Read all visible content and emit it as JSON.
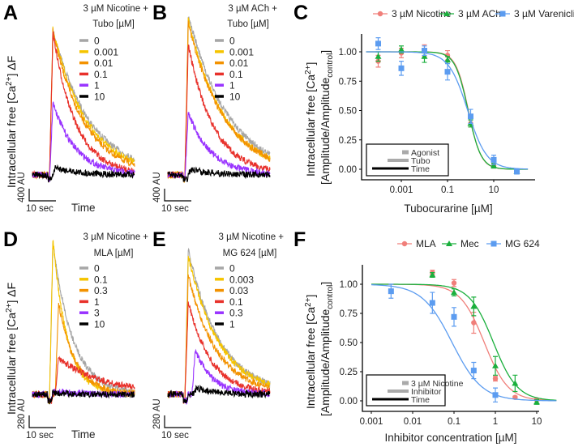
{
  "chart_data": [
    {
      "panel": "A",
      "type": "line",
      "header": [
        "3 µM Nicotine +",
        "Tubo [µM]"
      ],
      "ylabel": {
        "pre": "Intracellular free [Ca",
        "sup": "2+",
        "post": "] ΔF"
      },
      "xlabel": "Time",
      "scale_bar": {
        "amplitude": "400 AU",
        "time": "10 sec",
        "amplitude_AU": 400,
        "time_s": 10
      },
      "series": [
        {
          "name": "0",
          "color": "#a6a6a6",
          "peak_AU": 4800
        },
        {
          "name": "0.001",
          "color": "#f5c400",
          "peak_AU": 4800
        },
        {
          "name": "0.01",
          "color": "#f39200",
          "peak_AU": 4750
        },
        {
          "name": "0.1",
          "color": "#e8312b",
          "peak_AU": 4700
        },
        {
          "name": "1",
          "color": "#9933ff",
          "peak_AU": 2400
        },
        {
          "name": "10",
          "color": "#000000",
          "peak_AU": 250
        }
      ]
    },
    {
      "panel": "B",
      "type": "line",
      "header": [
        "3 µM ACh +",
        "Tubo [µM]"
      ],
      "scale_bar": {
        "amplitude": "400 AU",
        "time": "10 sec",
        "amplitude_AU": 400,
        "time_s": 10
      },
      "series": [
        {
          "name": "0",
          "color": "#a6a6a6",
          "peak_AU": 5300
        },
        {
          "name": "0.001",
          "color": "#f5c400",
          "peak_AU": 5100
        },
        {
          "name": "0.01",
          "color": "#f39200",
          "peak_AU": 5000
        },
        {
          "name": "0.1",
          "color": "#e8312b",
          "peak_AU": 4300
        },
        {
          "name": "1",
          "color": "#9933ff",
          "peak_AU": 2050
        },
        {
          "name": "10",
          "color": "#000000",
          "peak_AU": 180
        }
      ]
    },
    {
      "panel": "C",
      "type": "scatter",
      "xlabel": "Tubocurarine [µM]",
      "ylabel": {
        "line1_pre": "Intracellular free [Ca",
        "line1_sup": "2+",
        "line1_post": "]",
        "line2_pre": "[Amplitude/Amplitude",
        "line2_sub": "control",
        "line2_post": "]"
      },
      "x_scale": "log",
      "x_ticks": [
        "0.001",
        "0.1",
        "10"
      ],
      "x_tick_values": [
        0.001,
        0.1,
        10
      ],
      "y_ticks": [
        "0.00",
        "0.25",
        "0.50",
        "0.75",
        "1.00"
      ],
      "y_tick_values": [
        0,
        0.25,
        0.5,
        0.75,
        1
      ],
      "legend_position": "top",
      "inner_legend": [
        "Agonist",
        "Tubo",
        "Time"
      ],
      "series": [
        {
          "name": "3 µM Nicotine",
          "color": "#f07f7a",
          "marker": "circle",
          "x": [
            0.0001,
            0.001,
            0.01,
            0.1,
            1,
            10,
            100
          ],
          "y": [
            0.92,
            0.99,
            1.01,
            0.97,
            0.39,
            0.03,
            -0.02
          ],
          "err": [
            0.05,
            0.04,
            0.05,
            0.04,
            0.03,
            0.02,
            0.02
          ],
          "fit": {
            "ic50": 0.8,
            "hill": 1.6
          }
        },
        {
          "name": "3 µM ACh",
          "color": "#1aaf3c",
          "marker": "triangle",
          "x": [
            0.0001,
            0.001,
            0.01,
            0.1,
            1,
            10,
            100
          ],
          "y": [
            0.96,
            1.02,
            0.96,
            0.93,
            0.39,
            0.03,
            -0.02
          ],
          "err": [
            0.04,
            0.03,
            0.05,
            0.03,
            0.03,
            0.02,
            0.02
          ],
          "fit": {
            "ic50": 0.78,
            "hill": 1.55
          }
        },
        {
          "name": "3 µM Varenicline",
          "color": "#5c9cf0",
          "marker": "square",
          "x": [
            0.0001,
            0.001,
            0.01,
            0.1,
            1,
            10,
            100
          ],
          "y": [
            1.07,
            0.86,
            1.01,
            0.83,
            0.45,
            0.08,
            -0.02
          ],
          "err": [
            0.05,
            0.06,
            0.04,
            0.07,
            0.06,
            0.04,
            0.02
          ],
          "fit": {
            "ic50": 0.75,
            "hill": 1.05
          }
        }
      ]
    },
    {
      "panel": "D",
      "type": "line",
      "header": [
        "3 µM Nicotine +",
        "MLA [µM]"
      ],
      "ylabel": {
        "pre": "Intracellular free [Ca",
        "sup": "2+",
        "post": "] ΔF"
      },
      "xlabel": "Time",
      "scale_bar": {
        "amplitude": "280 AU",
        "time": "10 sec",
        "amplitude_AU": 280,
        "time_s": 10
      },
      "series": [
        {
          "name": "0",
          "color": "#a6a6a6",
          "peak_AU": 3500
        },
        {
          "name": "0.1",
          "color": "#f5c400",
          "peak_AU": 3600
        },
        {
          "name": "0.3",
          "color": "#f39200",
          "peak_AU": 2100
        },
        {
          "name": "1",
          "color": "#e8312b",
          "peak_AU": 840
        },
        {
          "name": "3",
          "color": "#9933ff",
          "peak_AU": 80
        },
        {
          "name": "10",
          "color": "#000000",
          "peak_AU": 40
        }
      ]
    },
    {
      "panel": "E",
      "type": "line",
      "header": [
        "3 µM Nicotine +",
        "MG 624 [µM]"
      ],
      "scale_bar": {
        "amplitude": "280 AU",
        "time": "10 sec",
        "amplitude_AU": 280,
        "time_s": 10
      },
      "series": [
        {
          "name": "0",
          "color": "#a6a6a6",
          "peak_AU": 3350
        },
        {
          "name": "0.003",
          "color": "#f5c400",
          "peak_AU": 3200
        },
        {
          "name": "0.03",
          "color": "#f39200",
          "peak_AU": 2750
        },
        {
          "name": "0.1",
          "color": "#e8312b",
          "peak_AU": 2150
        },
        {
          "name": "0.3",
          "color": "#9933ff",
          "peak_AU": 1030
        },
        {
          "name": "1",
          "color": "#000000",
          "peak_AU": 150
        }
      ]
    },
    {
      "panel": "F",
      "type": "scatter",
      "xlabel": "Inhibitor concentration [µM]",
      "ylabel": {
        "line1_pre": "Intracellular free [Ca",
        "line1_sup": "2+",
        "line1_post": "]",
        "line2_pre": "[Amplitude/Amplitude",
        "line2_sub": "control",
        "line2_post": "]"
      },
      "x_scale": "log",
      "x_ticks": [
        "0.001",
        "0.01",
        "0.1",
        "1",
        "10"
      ],
      "x_tick_values": [
        0.001,
        0.01,
        0.1,
        1,
        10
      ],
      "y_ticks": [
        "0.00",
        "0.25",
        "0.50",
        "0.75",
        "1.00"
      ],
      "y_tick_values": [
        0,
        0.25,
        0.5,
        0.75,
        1
      ],
      "legend_position": "top",
      "inner_legend": [
        "3 µM Nicotine",
        "Inhibitor",
        "Time"
      ],
      "series": [
        {
          "name": "MLA",
          "color": "#f07f7a",
          "marker": "circle",
          "x": [
            0.03,
            0.1,
            0.3,
            1,
            3,
            10
          ],
          "y": [
            1.1,
            1.01,
            0.67,
            0.19,
            0.03,
            0.01
          ],
          "err": [
            0.02,
            0.03,
            0.09,
            0.02,
            0.01,
            0.01
          ],
          "fit": {
            "ic50": 0.54,
            "hill": 1.5
          }
        },
        {
          "name": "Mec",
          "color": "#1aaf3c",
          "marker": "triangle",
          "x": [
            0.03,
            0.1,
            0.3,
            1,
            3,
            10
          ],
          "y": [
            1.08,
            0.93,
            0.81,
            0.3,
            0.15,
            -0.01
          ],
          "err": [
            0.02,
            0.03,
            0.08,
            0.08,
            0.07,
            0.02
          ],
          "fit": {
            "ic50": 0.9,
            "hill": 1.5
          }
        },
        {
          "name": "MG 624",
          "color": "#5c9cf0",
          "marker": "square",
          "x": [
            0.003,
            0.03,
            0.1,
            0.3,
            1
          ],
          "y": [
            0.94,
            0.84,
            0.72,
            0.26,
            0.05
          ],
          "err": [
            0.06,
            0.09,
            0.08,
            0.07,
            0.06
          ],
          "fit": {
            "ic50": 0.09,
            "hill": 1.2
          }
        }
      ]
    }
  ]
}
